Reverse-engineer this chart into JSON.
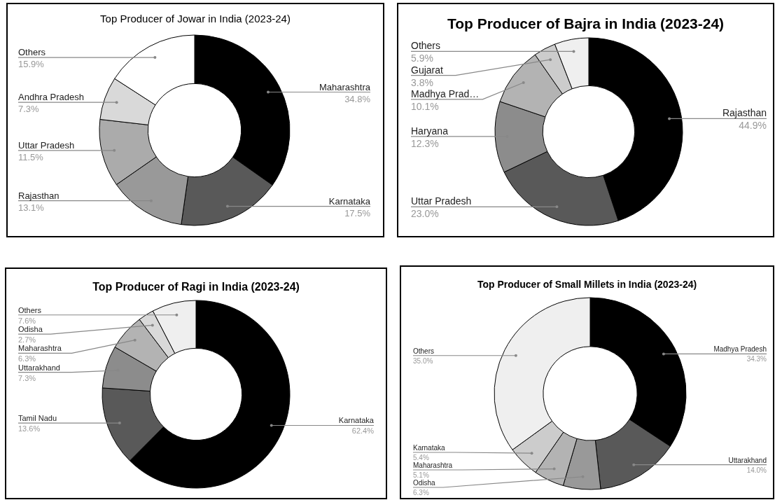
{
  "chart_data": [
    {
      "type": "donut",
      "title": "Top Producer of Jowar in India (2023-24)",
      "categories": [
        "Maharashtra",
        "Karnataka",
        "Rajasthan",
        "Uttar Pradesh",
        "Andhra Pradesh",
        "Others"
      ],
      "values": [
        34.8,
        17.5,
        13.1,
        11.5,
        7.3,
        15.9
      ],
      "colors": [
        "#000000",
        "#595959",
        "#999999",
        "#ababab",
        "#d9d9d9",
        "#ffffff"
      ],
      "value_labels": [
        "34.8%",
        "17.5%",
        "13.1%",
        "11.5%",
        "7.3%",
        "15.9%"
      ]
    },
    {
      "type": "donut",
      "title": "Top Producer of Bajra in India (2023-24)",
      "categories": [
        "Rajasthan",
        "Uttar Pradesh",
        "Haryana",
        "Madhya Prad…",
        "Gujarat",
        "Others"
      ],
      "values": [
        44.9,
        23.0,
        12.3,
        10.1,
        3.8,
        5.9
      ],
      "colors": [
        "#000000",
        "#595959",
        "#8c8c8c",
        "#b3b3b3",
        "#cccccc",
        "#efefef"
      ],
      "value_labels": [
        "44.9%",
        "23.0%",
        "12.3%",
        "10.1%",
        "3.8%",
        "5.9%"
      ]
    },
    {
      "type": "donut",
      "title": "Top Producer of Ragi in India (2023-24)",
      "categories": [
        "Karnataka",
        "Tamil Nadu",
        "Uttarakhand",
        "Maharashtra",
        "Odisha",
        "Others"
      ],
      "values": [
        62.4,
        13.6,
        7.3,
        6.3,
        2.7,
        7.6
      ],
      "colors": [
        "#000000",
        "#595959",
        "#8c8c8c",
        "#b3b3b3",
        "#d9d9d9",
        "#efefef"
      ],
      "value_labels": [
        "62.4%",
        "13.6%",
        "7.3%",
        "6.3%",
        "2.7%",
        "7.6%"
      ]
    },
    {
      "type": "donut",
      "title": "Top Producer of Small Millets in India (2023-24)",
      "categories": [
        "Madhya Pradesh",
        "Uttarakhand",
        "Odisha",
        "Maharashtra",
        "Karnataka",
        "Others"
      ],
      "values": [
        34.3,
        14.0,
        6.3,
        5.1,
        5.4,
        35.0
      ],
      "colors": [
        "#000000",
        "#595959",
        "#999999",
        "#b3b3b3",
        "#cccccc",
        "#efefef"
      ],
      "value_labels": [
        "34.3%",
        "14.0%",
        "6.3%",
        "5.1%",
        "5.4%",
        "35.0%"
      ]
    }
  ]
}
